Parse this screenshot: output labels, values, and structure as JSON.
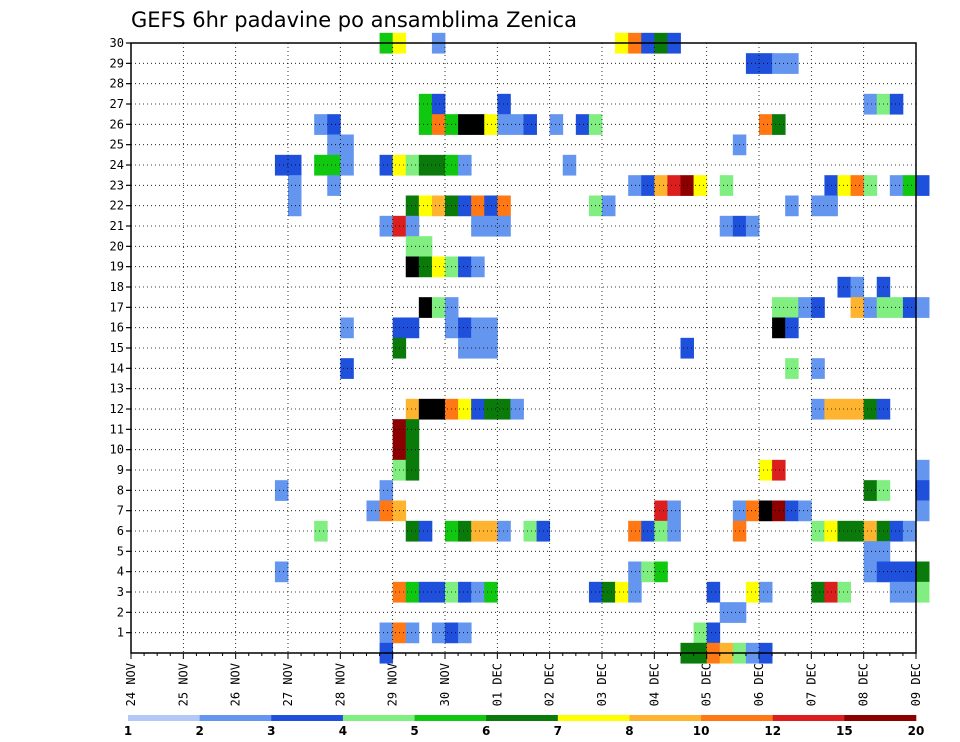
{
  "chart_data": {
    "type": "heatmap",
    "title": "GEFS 6hr padavine po ansamblima Zenica",
    "x_tick_labels": [
      "24 NOV",
      "25 NOV",
      "26 NOV",
      "27 NOV",
      "28 NOV",
      "29 NOV",
      "30 NOV",
      "01 DEC",
      "02 DEC",
      "03 DEC",
      "04 DEC",
      "05 DEC",
      "06 DEC",
      "07 DEC",
      "08 DEC",
      "09 DEC"
    ],
    "y_tick_labels": [
      "1",
      "2",
      "3",
      "4",
      "5",
      "6",
      "7",
      "8",
      "9",
      "10",
      "11",
      "12",
      "13",
      "14",
      "15",
      "16",
      "17",
      "18",
      "19",
      "20",
      "21",
      "22",
      "23",
      "24",
      "25",
      "26",
      "27",
      "28",
      "29",
      "30"
    ],
    "x_range_steps": [
      0,
      60
    ],
    "y_range": [
      0,
      30
    ],
    "grid": true,
    "colorbar_labels": [
      "1",
      "2",
      "3",
      "4",
      "5",
      "6",
      "7",
      "8",
      "10",
      "12",
      "15",
      "20"
    ],
    "colorbar_colors": [
      "#b4c8f8",
      "#6496f0",
      "#1e50dc",
      "#80ee80",
      "#10c810",
      "#0a7a0a",
      "#ffff00",
      "#ffb430",
      "#ff7814",
      "#dc1e1e",
      "#8c0000"
    ],
    "cells": [
      [
        30,
        19,
        4
      ],
      [
        30,
        20,
        6
      ],
      [
        30,
        23,
        1
      ],
      [
        30,
        37,
        6
      ],
      [
        30,
        38,
        8
      ],
      [
        30,
        39,
        2
      ],
      [
        30,
        40,
        5
      ],
      [
        30,
        41,
        2
      ],
      [
        29,
        47,
        2
      ],
      [
        29,
        48,
        2
      ],
      [
        29,
        49,
        1
      ],
      [
        29,
        50,
        1
      ],
      [
        27,
        22,
        4
      ],
      [
        27,
        23,
        2
      ],
      [
        27,
        28,
        2
      ],
      [
        27,
        56,
        1
      ],
      [
        27,
        57,
        3
      ],
      [
        27,
        58,
        2
      ],
      [
        26,
        14,
        1
      ],
      [
        26,
        15,
        2
      ],
      [
        26,
        22,
        4
      ],
      [
        26,
        23,
        8
      ],
      [
        26,
        24,
        4
      ],
      [
        26,
        25,
        11
      ],
      [
        26,
        26,
        11
      ],
      [
        26,
        27,
        6
      ],
      [
        26,
        28,
        1
      ],
      [
        26,
        29,
        1
      ],
      [
        26,
        30,
        2
      ],
      [
        26,
        32,
        1
      ],
      [
        26,
        34,
        2
      ],
      [
        26,
        35,
        3
      ],
      [
        26,
        48,
        8
      ],
      [
        26,
        49,
        5
      ],
      [
        25,
        15,
        1
      ],
      [
        25,
        16,
        1
      ],
      [
        25,
        46,
        1
      ],
      [
        24,
        11,
        2
      ],
      [
        24,
        12,
        2
      ],
      [
        24,
        14,
        4
      ],
      [
        24,
        15,
        4
      ],
      [
        24,
        16,
        1
      ],
      [
        24,
        19,
        2
      ],
      [
        24,
        20,
        6
      ],
      [
        24,
        21,
        3
      ],
      [
        24,
        22,
        5
      ],
      [
        24,
        23,
        5
      ],
      [
        24,
        24,
        4
      ],
      [
        24,
        25,
        1
      ],
      [
        24,
        33,
        1
      ],
      [
        23,
        12,
        1
      ],
      [
        23,
        15,
        1
      ],
      [
        23,
        38,
        1
      ],
      [
        23,
        39,
        2
      ],
      [
        23,
        40,
        7
      ],
      [
        23,
        41,
        9
      ],
      [
        23,
        42,
        10
      ],
      [
        23,
        43,
        6
      ],
      [
        23,
        45,
        3
      ],
      [
        23,
        53,
        2
      ],
      [
        23,
        54,
        6
      ],
      [
        23,
        55,
        8
      ],
      [
        23,
        56,
        3
      ],
      [
        23,
        58,
        1
      ],
      [
        23,
        59,
        4
      ],
      [
        23,
        60,
        2
      ],
      [
        22,
        12,
        1
      ],
      [
        22,
        21,
        5
      ],
      [
        22,
        22,
        6
      ],
      [
        22,
        23,
        7
      ],
      [
        22,
        24,
        5
      ],
      [
        22,
        25,
        2
      ],
      [
        22,
        26,
        8
      ],
      [
        22,
        27,
        2
      ],
      [
        22,
        28,
        8
      ],
      [
        22,
        35,
        3
      ],
      [
        22,
        36,
        1
      ],
      [
        22,
        50,
        1
      ],
      [
        22,
        52,
        1
      ],
      [
        22,
        53,
        1
      ],
      [
        21,
        19,
        1
      ],
      [
        21,
        20,
        9
      ],
      [
        21,
        21,
        1
      ],
      [
        21,
        26,
        1
      ],
      [
        21,
        27,
        1
      ],
      [
        21,
        28,
        1
      ],
      [
        21,
        45,
        1
      ],
      [
        21,
        46,
        2
      ],
      [
        21,
        47,
        1
      ],
      [
        20,
        21,
        3
      ],
      [
        20,
        22,
        3
      ],
      [
        19,
        21,
        11
      ],
      [
        19,
        22,
        5
      ],
      [
        19,
        23,
        6
      ],
      [
        19,
        24,
        3
      ],
      [
        19,
        25,
        2
      ],
      [
        19,
        26,
        1
      ],
      [
        18,
        54,
        2
      ],
      [
        18,
        55,
        1
      ],
      [
        18,
        57,
        2
      ],
      [
        17,
        22,
        11
      ],
      [
        17,
        23,
        3
      ],
      [
        17,
        24,
        1
      ],
      [
        17,
        49,
        3
      ],
      [
        17,
        50,
        3
      ],
      [
        17,
        51,
        1
      ],
      [
        17,
        52,
        2
      ],
      [
        17,
        55,
        7
      ],
      [
        17,
        56,
        1
      ],
      [
        17,
        57,
        3
      ],
      [
        17,
        58,
        3
      ],
      [
        17,
        59,
        2
      ],
      [
        17,
        60,
        1
      ],
      [
        16,
        16,
        1
      ],
      [
        16,
        20,
        2
      ],
      [
        16,
        21,
        2
      ],
      [
        16,
        24,
        1
      ],
      [
        16,
        25,
        2
      ],
      [
        16,
        26,
        1
      ],
      [
        16,
        27,
        1
      ],
      [
        16,
        49,
        11
      ],
      [
        16,
        50,
        2
      ],
      [
        15,
        20,
        5
      ],
      [
        15,
        25,
        1
      ],
      [
        15,
        26,
        1
      ],
      [
        15,
        27,
        1
      ],
      [
        15,
        42,
        2
      ],
      [
        14,
        16,
        2
      ],
      [
        14,
        50,
        3
      ],
      [
        14,
        52,
        1
      ],
      [
        12,
        21,
        7
      ],
      [
        12,
        22,
        11
      ],
      [
        12,
        23,
        11
      ],
      [
        12,
        24,
        8
      ],
      [
        12,
        25,
        6
      ],
      [
        12,
        26,
        2
      ],
      [
        12,
        27,
        5
      ],
      [
        12,
        28,
        5
      ],
      [
        12,
        29,
        1
      ],
      [
        12,
        52,
        1
      ],
      [
        12,
        53,
        7
      ],
      [
        12,
        54,
        7
      ],
      [
        12,
        55,
        7
      ],
      [
        12,
        56,
        5
      ],
      [
        12,
        57,
        2
      ],
      [
        11,
        20,
        10
      ],
      [
        11,
        21,
        5
      ],
      [
        10,
        20,
        10
      ],
      [
        10,
        21,
        5
      ],
      [
        9,
        20,
        3
      ],
      [
        9,
        21,
        5
      ],
      [
        9,
        48,
        6
      ],
      [
        9,
        49,
        9
      ],
      [
        9,
        60,
        1
      ],
      [
        8,
        11,
        1
      ],
      [
        8,
        19,
        1
      ],
      [
        8,
        56,
        5
      ],
      [
        8,
        57,
        3
      ],
      [
        8,
        60,
        2
      ],
      [
        7,
        18,
        1
      ],
      [
        7,
        19,
        8
      ],
      [
        7,
        20,
        7
      ],
      [
        7,
        40,
        9
      ],
      [
        7,
        41,
        1
      ],
      [
        7,
        46,
        1
      ],
      [
        7,
        47,
        8
      ],
      [
        7,
        48,
        11
      ],
      [
        7,
        49,
        10
      ],
      [
        7,
        50,
        2
      ],
      [
        7,
        51,
        1
      ],
      [
        7,
        60,
        1
      ],
      [
        6,
        14,
        3
      ],
      [
        6,
        21,
        5
      ],
      [
        6,
        22,
        2
      ],
      [
        6,
        24,
        4
      ],
      [
        6,
        25,
        5
      ],
      [
        6,
        26,
        7
      ],
      [
        6,
        27,
        7
      ],
      [
        6,
        28,
        1
      ],
      [
        6,
        30,
        3
      ],
      [
        6,
        31,
        2
      ],
      [
        6,
        38,
        8
      ],
      [
        6,
        39,
        2
      ],
      [
        6,
        40,
        3
      ],
      [
        6,
        41,
        1
      ],
      [
        6,
        46,
        8
      ],
      [
        6,
        52,
        3
      ],
      [
        6,
        53,
        6
      ],
      [
        6,
        54,
        5
      ],
      [
        6,
        55,
        5
      ],
      [
        6,
        56,
        7
      ],
      [
        6,
        57,
        5
      ],
      [
        6,
        58,
        2
      ],
      [
        6,
        59,
        1
      ],
      [
        5,
        56,
        1
      ],
      [
        5,
        57,
        1
      ],
      [
        4,
        11,
        1
      ],
      [
        4,
        38,
        1
      ],
      [
        4,
        39,
        3
      ],
      [
        4,
        40,
        4
      ],
      [
        4,
        56,
        1
      ],
      [
        4,
        57,
        2
      ],
      [
        4,
        58,
        2
      ],
      [
        4,
        59,
        2
      ],
      [
        4,
        60,
        5
      ],
      [
        3,
        20,
        8
      ],
      [
        3,
        21,
        4
      ],
      [
        3,
        22,
        2
      ],
      [
        3,
        23,
        2
      ],
      [
        3,
        24,
        3
      ],
      [
        3,
        25,
        2
      ],
      [
        3,
        26,
        1
      ],
      [
        3,
        27,
        4
      ],
      [
        3,
        35,
        2
      ],
      [
        3,
        36,
        5
      ],
      [
        3,
        37,
        6
      ],
      [
        3,
        38,
        1
      ],
      [
        3,
        44,
        2
      ],
      [
        3,
        47,
        6
      ],
      [
        3,
        48,
        1
      ],
      [
        3,
        52,
        5
      ],
      [
        3,
        53,
        9
      ],
      [
        3,
        54,
        3
      ],
      [
        3,
        58,
        1
      ],
      [
        3,
        59,
        1
      ],
      [
        3,
        60,
        3
      ],
      [
        2,
        45,
        1
      ],
      [
        2,
        46,
        1
      ],
      [
        1,
        19,
        1
      ],
      [
        1,
        20,
        8
      ],
      [
        1,
        21,
        1
      ],
      [
        1,
        23,
        1
      ],
      [
        1,
        24,
        2
      ],
      [
        1,
        25,
        1
      ],
      [
        1,
        43,
        3
      ],
      [
        1,
        44,
        2
      ],
      [
        0,
        19,
        2
      ],
      [
        0,
        42,
        5
      ],
      [
        0,
        43,
        5
      ],
      [
        0,
        44,
        8
      ],
      [
        0,
        45,
        7
      ],
      [
        0,
        46,
        3
      ],
      [
        0,
        47,
        1
      ],
      [
        0,
        48,
        2
      ]
    ]
  }
}
